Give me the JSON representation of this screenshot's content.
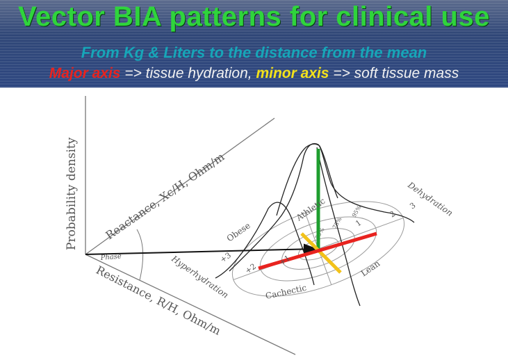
{
  "header": {
    "title": "Vector BIA patterns for clinical use",
    "subtitle": "From Kg & Liters to the distance from the mean",
    "axes_line": {
      "major": "Major axis",
      "major_desc": " => tissue hydration, ",
      "minor": "minor axis",
      "minor_desc": " => soft tissue mass"
    }
  },
  "diagram": {
    "axis_labels": {
      "probability": "Probability density",
      "reactance": "Reactance, Xc/H, Ohm/m",
      "resistance": "Resistance, R/H, Ohm/m",
      "phase": "Phase"
    },
    "patterns": {
      "obese": "Obese",
      "athletic": "Athletic",
      "dehydration": "Dehydration",
      "hyperhydration": "Hyperhydration",
      "cachectic": "Cachectic",
      "lean": "Lean"
    },
    "ellipse_percentiles": [
      "50%",
      "75%",
      "95%"
    ],
    "scale_ticks": {
      "plus3": "+3",
      "plus2": "+2",
      "plus1": "+1",
      "minus1": "1",
      "minus2": "2",
      "minus3": "3"
    },
    "colors": {
      "major_axis": "#e8231f",
      "minor_axis": "#f2c21a",
      "probability_line": "#1e9e2f"
    }
  }
}
